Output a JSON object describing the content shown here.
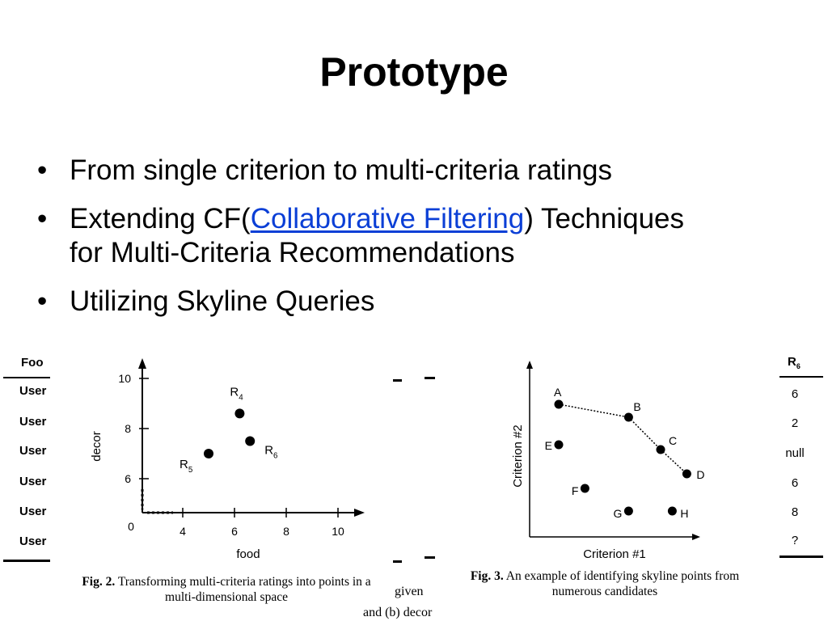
{
  "slide": {
    "title": "Prototype",
    "bullets": [
      {
        "text": "From single criterion to multi-criteria ratings"
      },
      {
        "pre": "Extending CF(",
        "link": "Collaborative Filtering",
        "post": ") Techniques",
        "line2": "for Multi-Criteria Recommendations"
      },
      {
        "text": "Utilizing Skyline Queries"
      }
    ],
    "bullet_glyph": "•"
  },
  "left_table": {
    "header": "Foo",
    "rows": [
      "User",
      "User",
      "User",
      "User",
      "User",
      "User"
    ]
  },
  "right_table": {
    "header": "R6",
    "header_base": "R",
    "header_sub": "6",
    "values": [
      "6",
      "2",
      "null",
      "6",
      "8",
      "?"
    ]
  },
  "middle_caption_fragment": {
    "line1": "given",
    "line2": "and (b) decor"
  },
  "fig2": {
    "caption_label": "Fig. 2.",
    "caption_line1": "Transforming multi-criteria ratings into points in a",
    "caption_line2": "multi-dimensional space",
    "chart_data": {
      "type": "scatter",
      "xlabel": "food",
      "ylabel": "decor",
      "xlim": [
        3,
        11
      ],
      "ylim": [
        4.5,
        10.5
      ],
      "origin_label": "0",
      "xticks": [
        4,
        6,
        8,
        10
      ],
      "yticks": [
        6,
        8,
        10
      ],
      "points": [
        {
          "label": "R4",
          "base": "R",
          "sub": "4",
          "x": 6.2,
          "y": 8.6
        },
        {
          "label": "R5",
          "base": "R",
          "sub": "5",
          "x": 5.0,
          "y": 7.0
        },
        {
          "label": "R6",
          "base": "R",
          "sub": "6",
          "x": 6.6,
          "y": 7.5
        }
      ]
    }
  },
  "fig3": {
    "caption_label": "Fig. 3.",
    "caption_line1": "An example of identifying skyline points from",
    "caption_line2": "numerous candidates",
    "chart_data": {
      "type": "scatter",
      "xlabel": "Criterion #1",
      "ylabel": "Criterion #2",
      "xlim": [
        0,
        10
      ],
      "ylim": [
        0,
        10
      ],
      "points": [
        {
          "label": "A",
          "x": 1.0,
          "y": 8.2
        },
        {
          "label": "B",
          "x": 3.4,
          "y": 7.4
        },
        {
          "label": "C",
          "x": 4.5,
          "y": 5.4
        },
        {
          "label": "D",
          "x": 5.4,
          "y": 3.9
        },
        {
          "label": "E",
          "x": 1.0,
          "y": 5.7
        },
        {
          "label": "F",
          "x": 1.9,
          "y": 3.0
        },
        {
          "label": "G",
          "x": 3.4,
          "y": 1.6
        },
        {
          "label": "H",
          "x": 4.9,
          "y": 1.6
        }
      ],
      "skyline": [
        "A",
        "B",
        "C",
        "D"
      ]
    }
  }
}
